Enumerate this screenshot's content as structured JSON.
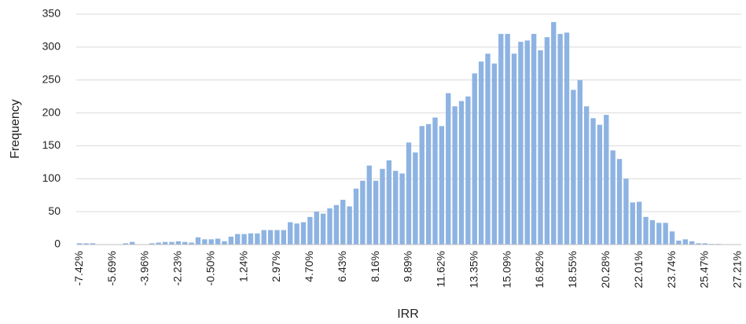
{
  "chart_data": {
    "type": "bar",
    "x_label": "IRR",
    "y_label": "Frequency",
    "categories": [
      "-7.42%",
      null,
      null,
      null,
      null,
      "-5.69%",
      null,
      null,
      null,
      null,
      "-3.96%",
      null,
      null,
      null,
      null,
      "-2.23%",
      null,
      null,
      null,
      null,
      "-0.50%",
      null,
      null,
      null,
      null,
      "1.24%",
      null,
      null,
      null,
      null,
      "2.97%",
      null,
      null,
      null,
      null,
      "4.70%",
      null,
      null,
      null,
      null,
      "6.43%",
      null,
      null,
      null,
      null,
      "8.16%",
      null,
      null,
      null,
      null,
      "9.89%",
      null,
      null,
      null,
      null,
      "11.62%",
      null,
      null,
      null,
      null,
      "13.35%",
      null,
      null,
      null,
      null,
      "15.09%",
      null,
      null,
      null,
      null,
      "16.82%",
      null,
      null,
      null,
      null,
      "18.55%",
      null,
      null,
      null,
      null,
      "20.28%",
      null,
      null,
      null,
      null,
      "22.01%",
      null,
      null,
      null,
      null,
      "23.74%",
      null,
      null,
      null,
      null,
      "25.47%",
      null,
      null,
      null,
      null,
      "27.21%"
    ],
    "values": [
      2,
      2,
      2,
      0,
      0,
      0,
      0,
      2,
      4,
      0,
      0,
      2,
      3,
      4,
      4,
      5,
      4,
      3,
      11,
      8,
      8,
      9,
      5,
      12,
      16,
      16,
      17,
      17,
      22,
      22,
      22,
      22,
      34,
      32,
      34,
      42,
      50,
      47,
      55,
      60,
      68,
      58,
      85,
      97,
      120,
      97,
      115,
      128,
      112,
      108,
      155,
      140,
      180,
      183,
      193,
      180,
      230,
      210,
      218,
      225,
      260,
      278,
      290,
      275,
      320,
      320,
      290,
      308,
      310,
      320,
      295,
      315,
      338,
      320,
      322,
      235,
      250,
      210,
      192,
      182,
      197,
      143,
      130,
      100,
      64,
      65,
      42,
      37,
      33,
      33,
      20,
      6,
      8,
      5,
      2,
      2,
      1,
      1,
      0,
      0,
      0
    ],
    "color": "#8db3e2",
    "ylim": [
      0,
      350
    ],
    "yticks": [
      0,
      50,
      100,
      150,
      200,
      250,
      300,
      350
    ],
    "grid": true
  }
}
